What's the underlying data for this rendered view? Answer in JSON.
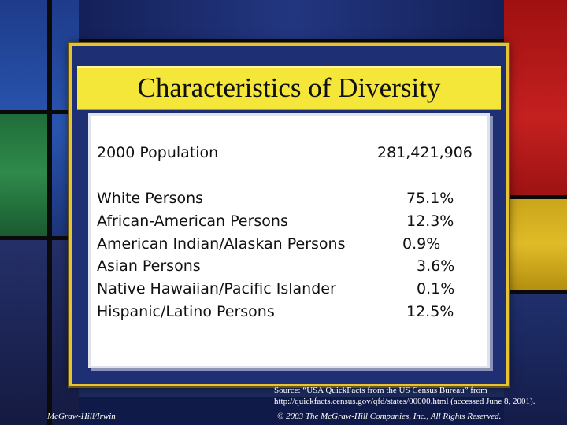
{
  "slide": {
    "title": "Characteristics of Diversity"
  },
  "population": {
    "label": "2000 Population",
    "value": "281,421,906"
  },
  "groups": [
    {
      "label": "White Persons",
      "value": "75.1%"
    },
    {
      "label": "African-American Persons",
      "value": "12.3%"
    },
    {
      "label": "American Indian/Alaskan Persons",
      "value": "0.9%"
    },
    {
      "label": "Asian Persons",
      "value": "3.6%"
    },
    {
      "label": "Native Hawaiian/Pacific Islander",
      "value": "0.1%"
    },
    {
      "label": "Hispanic/Latino Persons",
      "value": "12.5%"
    }
  ],
  "source": {
    "line1": "Source: “USA QuickFacts from the US Census Bureau” from",
    "link": "http://quickfacts.census.gov/qfd/states/00000.html",
    "accessed": " (accessed June 8, 2001)."
  },
  "footer": {
    "publisher": "McGraw-Hill/Irwin",
    "copyright": "© 2003 The McGraw-Hill Companies, Inc., All Rights Reserved."
  },
  "colors": {
    "title_band": "#f5e63a",
    "frame_border": "#e6c332",
    "frame_fill": "#1f2f74",
    "panel": "#ffffff"
  }
}
